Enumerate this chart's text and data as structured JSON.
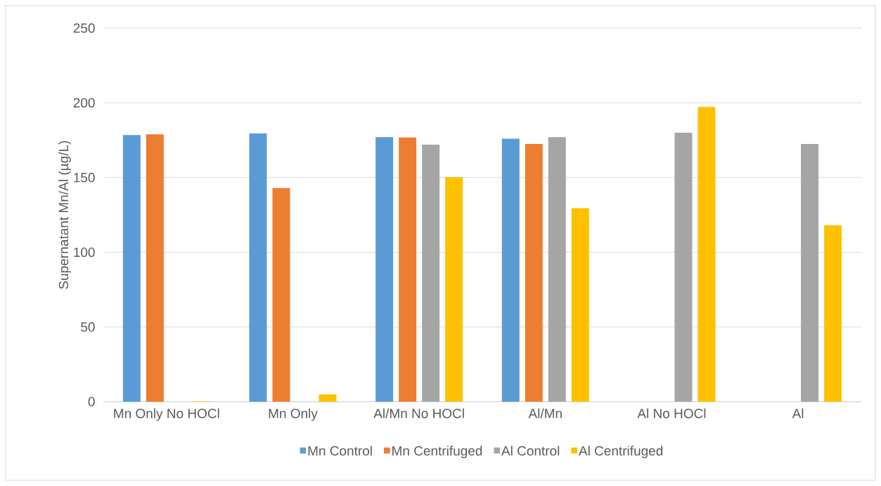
{
  "chart_data": {
    "type": "bar",
    "ylabel": "Supernatant Mn/Al (µg/L)",
    "categories": [
      "Mn Only No HOCl",
      "Mn Only",
      "Al/Mn No HOCl",
      "Al/Mn",
      "Al No HOCl",
      "Al"
    ],
    "series": [
      {
        "name": "Mn Control",
        "color": "#5b9bd5",
        "values": [
          178.5,
          179.5,
          177.0,
          176.0,
          null,
          null
        ]
      },
      {
        "name": "Mn Centrifuged",
        "color": "#ed7d31",
        "values": [
          178.9,
          143.0,
          176.8,
          172.5,
          null,
          null
        ]
      },
      {
        "name": "Al Control",
        "color": "#a5a5a5",
        "values": [
          null,
          null,
          172.0,
          177.0,
          180.0,
          172.5
        ]
      },
      {
        "name": "Al Centrifuged",
        "color": "#ffc000",
        "values": [
          0.3,
          4.9,
          150.2,
          129.4,
          197.3,
          118.1
        ]
      }
    ],
    "ylim": [
      0,
      250
    ],
    "yticks": [
      0,
      50,
      100,
      150,
      200,
      250
    ],
    "grid": "y",
    "legend": "bottom"
  }
}
